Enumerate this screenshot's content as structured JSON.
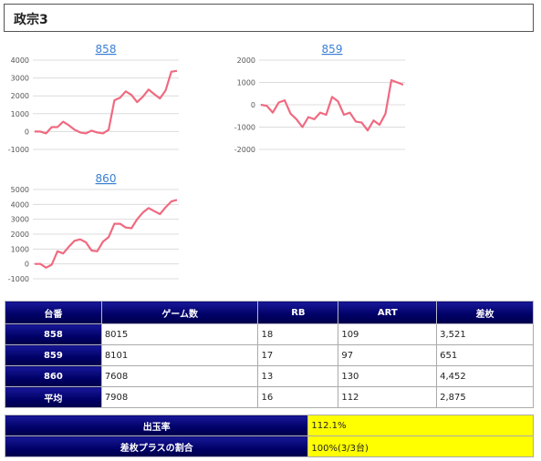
{
  "page": {
    "title": "政宗3"
  },
  "chart_data": [
    {
      "type": "line",
      "title": "858",
      "color": "#f06a80",
      "yticks": [
        4000,
        3000,
        2000,
        1000,
        0,
        -1000
      ],
      "ylim": [
        -1000,
        4000
      ],
      "values": [
        0,
        0,
        -100,
        250,
        250,
        550,
        350,
        100,
        -50,
        -100,
        50,
        -50,
        -100,
        100,
        1750,
        1900,
        2250,
        2050,
        1650,
        1950,
        2350,
        2100,
        1850,
        2300,
        3350,
        3400
      ]
    },
    {
      "type": "line",
      "title": "859",
      "color": "#f06a80",
      "yticks": [
        2000,
        1000,
        0,
        -1000,
        -2000
      ],
      "ylim": [
        -2000,
        2000
      ],
      "values": [
        0,
        -50,
        -350,
        100,
        200,
        -400,
        -650,
        -1000,
        -550,
        -650,
        -350,
        -450,
        350,
        150,
        -450,
        -350,
        -750,
        -800,
        -1150,
        -700,
        -900,
        -400,
        1100,
        1000,
        900
      ]
    },
    {
      "type": "line",
      "title": "860",
      "color": "#f06a80",
      "yticks": [
        5000,
        4000,
        3000,
        2000,
        1000,
        0,
        -1000
      ],
      "ylim": [
        -1000,
        5000
      ],
      "values": [
        0,
        0,
        -250,
        -50,
        850,
        700,
        1150,
        1550,
        1650,
        1450,
        900,
        850,
        1500,
        1800,
        2700,
        2700,
        2450,
        2400,
        3000,
        3450,
        3750,
        3550,
        3350,
        3800,
        4200,
        4300
      ]
    }
  ],
  "table": {
    "headers": [
      "台番",
      "ゲーム数",
      "RB",
      "ART",
      "差枚"
    ],
    "rows": [
      {
        "id": "858",
        "games": "8015",
        "rb": "18",
        "art": "109",
        "diff": "3,521"
      },
      {
        "id": "859",
        "games": "8101",
        "rb": "17",
        "art": "97",
        "diff": "651"
      },
      {
        "id": "860",
        "games": "7608",
        "rb": "13",
        "art": "130",
        "diff": "4,452"
      },
      {
        "id": "平均",
        "games": "7908",
        "rb": "16",
        "art": "112",
        "diff": "2,875"
      }
    ]
  },
  "summary": {
    "payout_label": "出玉率",
    "payout_value": "112.1%",
    "plus_label": "差枚プラスの割合",
    "plus_value": "100%(3/3台)"
  }
}
